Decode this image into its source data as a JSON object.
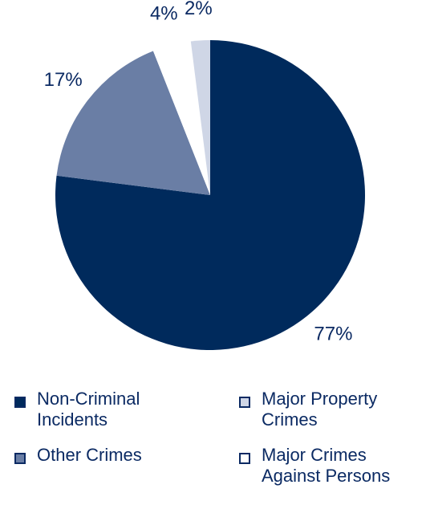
{
  "chart_data": {
    "type": "pie",
    "title": "",
    "slices": [
      {
        "label": "Non-Criminal Incidents",
        "value": 77,
        "display": "77%",
        "color": "#002a5c"
      },
      {
        "label": "Other Crimes",
        "value": 17,
        "display": "17%",
        "color": "#6a7ea5"
      },
      {
        "label": "Major Crimes Against Persons",
        "value": 4,
        "display": "4%",
        "color": "#ffffff"
      },
      {
        "label": "Major Property Crimes",
        "value": 2,
        "display": "2%",
        "color": "#cfd6e6"
      }
    ]
  },
  "legend": {
    "items": [
      {
        "text": "Non-Criminal\nIncidents",
        "color": "#002a5c"
      },
      {
        "text": "Major Property\nCrimes",
        "color": "#cfd6e6"
      },
      {
        "text": "Other Crimes",
        "color": "#6a7ea5"
      },
      {
        "text": "Major Crimes\nAgainst Persons",
        "color": "#ffffff"
      }
    ]
  }
}
